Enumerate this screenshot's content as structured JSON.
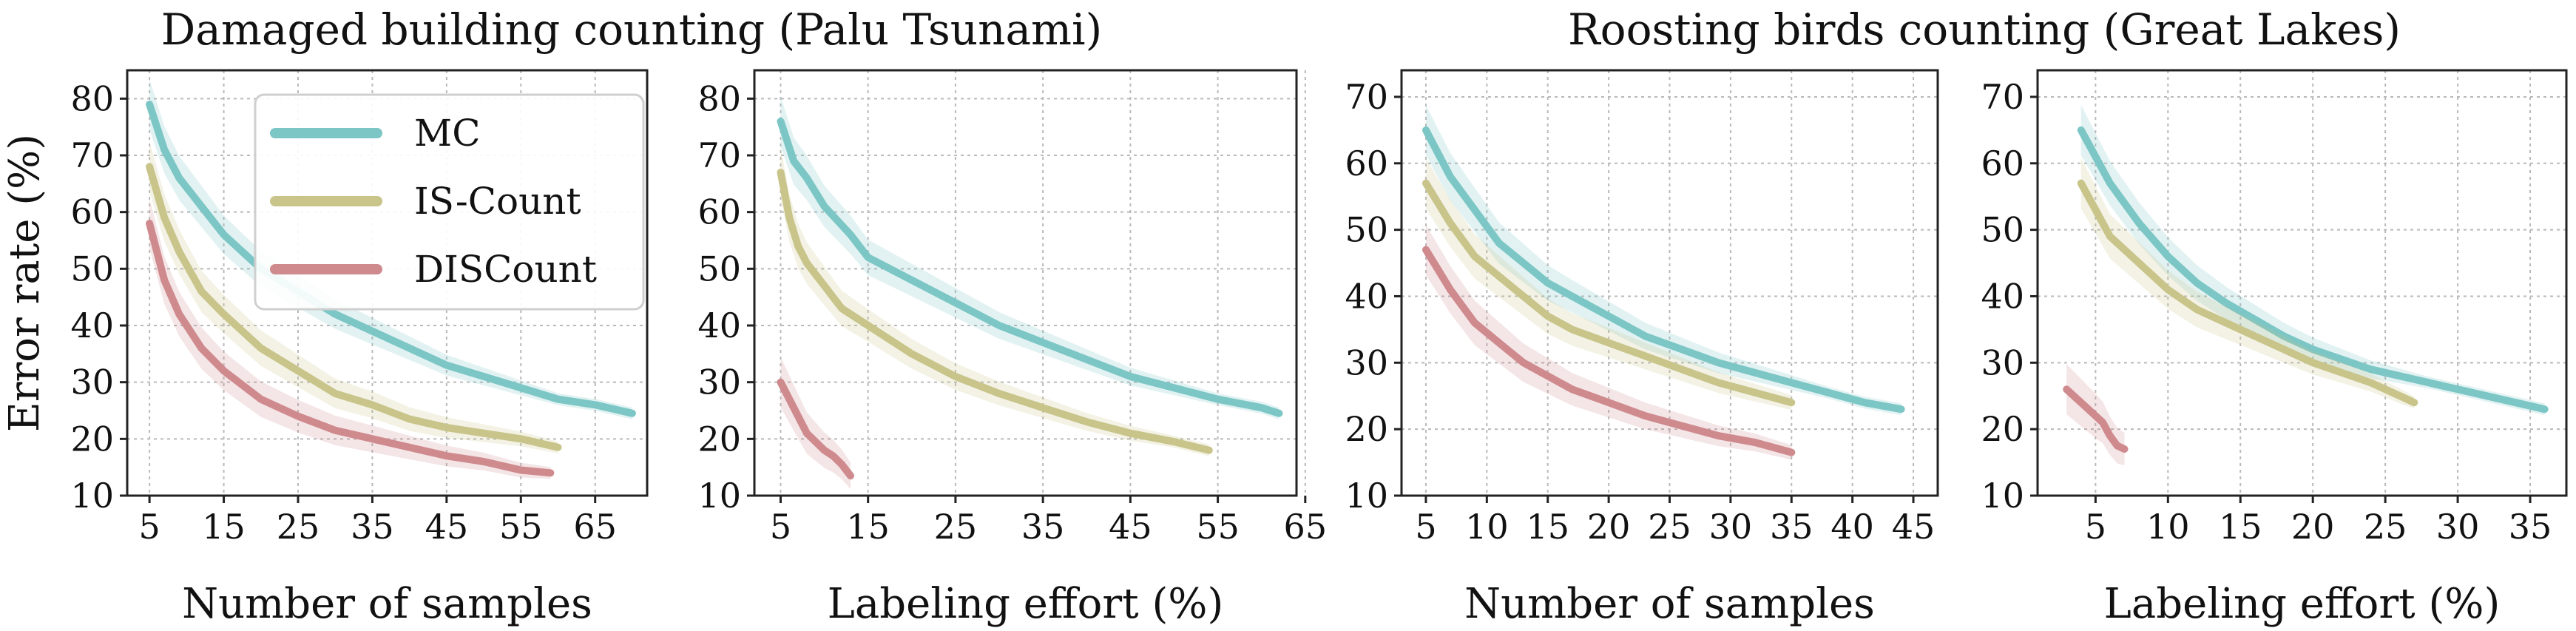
{
  "suptitles": [
    "Damaged building counting (Palu Tsunami)",
    "Roosting birds counting (Great Lakes)"
  ],
  "colors": {
    "MC": "#7cc6c6",
    "IS-Count": "#c8c48a",
    "DISCount": "#cf8a8e",
    "grid": "#b9b9b9"
  },
  "legend": {
    "placement": "upper-left of first panel",
    "entries": [
      "MC",
      "IS-Count",
      "DISCount"
    ]
  },
  "chart_data": [
    {
      "type": "line",
      "group": "Damaged building counting (Palu Tsunami)",
      "xlabel": "Number of samples",
      "ylabel": "Error rate (%)",
      "xlim": [
        2,
        72
      ],
      "ylim": [
        10,
        85
      ],
      "xticks": [
        5,
        15,
        25,
        35,
        45,
        55,
        65
      ],
      "yticks": [
        10,
        20,
        30,
        40,
        50,
        60,
        70,
        80
      ],
      "grid": true,
      "series": [
        {
          "name": "MC",
          "x": [
            5,
            7,
            9,
            12,
            15,
            20,
            25,
            30,
            35,
            40,
            45,
            50,
            55,
            60,
            65,
            70
          ],
          "y": [
            79,
            71,
            66,
            61,
            56,
            50,
            46,
            42,
            39,
            36,
            33,
            31,
            29,
            27,
            26,
            24.5
          ]
        },
        {
          "name": "IS-Count",
          "x": [
            5,
            7,
            9,
            12,
            15,
            20,
            25,
            30,
            35,
            40,
            45,
            50,
            55,
            60
          ],
          "y": [
            68,
            59,
            53,
            46,
            42,
            36,
            32,
            28,
            26,
            23.5,
            22,
            21,
            20,
            18.5
          ]
        },
        {
          "name": "DISCount",
          "x": [
            5,
            7,
            9,
            12,
            15,
            20,
            25,
            30,
            35,
            40,
            45,
            50,
            55,
            59
          ],
          "y": [
            58,
            48,
            42,
            36,
            32,
            27,
            24,
            21.5,
            20,
            18.5,
            17,
            16,
            14.5,
            14
          ]
        }
      ]
    },
    {
      "type": "line",
      "group": "Damaged building counting (Palu Tsunami)",
      "xlabel": "Labeling effort (%)",
      "ylabel": "",
      "xlim": [
        2,
        64
      ],
      "ylim": [
        10,
        85
      ],
      "xticks": [
        5,
        15,
        25,
        35,
        45,
        55,
        65
      ],
      "yticks": [
        10,
        20,
        30,
        40,
        50,
        60,
        70,
        80
      ],
      "grid": true,
      "series": [
        {
          "name": "MC",
          "x": [
            5,
            6.5,
            8,
            10,
            13,
            15,
            20,
            25,
            30,
            35,
            40,
            45,
            50,
            55,
            60,
            62
          ],
          "y": [
            76,
            69,
            66,
            61,
            56,
            52,
            48,
            44,
            40,
            37,
            34,
            31,
            29,
            27,
            25.5,
            24.5
          ]
        },
        {
          "name": "IS-Count",
          "x": [
            5,
            6,
            7,
            8,
            10,
            12,
            15,
            20,
            25,
            30,
            35,
            40,
            45,
            50,
            54
          ],
          "y": [
            67,
            59,
            54,
            51,
            47,
            43,
            40,
            35,
            31,
            28,
            25.5,
            23,
            21,
            19.5,
            18
          ]
        },
        {
          "name": "DISCount",
          "x": [
            5,
            6,
            7,
            8,
            9,
            10,
            11,
            12,
            13
          ],
          "y": [
            30,
            27,
            24,
            21,
            19.5,
            18,
            17,
            15.5,
            13.5
          ]
        }
      ]
    },
    {
      "type": "line",
      "group": "Roosting birds counting (Great Lakes)",
      "xlabel": "Number of samples",
      "ylabel": "",
      "xlim": [
        3,
        47
      ],
      "ylim": [
        10,
        74
      ],
      "xticks": [
        5,
        10,
        15,
        20,
        25,
        30,
        35,
        40,
        45
      ],
      "yticks": [
        10,
        20,
        30,
        40,
        50,
        60,
        70
      ],
      "grid": true,
      "series": [
        {
          "name": "MC",
          "x": [
            5,
            7,
            9,
            11,
            13,
            15,
            17,
            20,
            23,
            26,
            29,
            32,
            35,
            38,
            41,
            44
          ],
          "y": [
            65,
            58,
            53,
            48,
            45,
            42,
            40,
            37,
            34,
            32,
            30,
            28.5,
            27,
            25.5,
            24,
            23
          ]
        },
        {
          "name": "IS-Count",
          "x": [
            5,
            7,
            9,
            11,
            13,
            15,
            17,
            20,
            23,
            26,
            29,
            32,
            35
          ],
          "y": [
            57,
            51,
            46,
            43,
            40,
            37,
            35,
            33,
            31,
            29,
            27,
            25.5,
            24
          ]
        },
        {
          "name": "DISCount",
          "x": [
            5,
            7,
            9,
            11,
            13,
            15,
            17,
            20,
            23,
            26,
            29,
            32,
            35
          ],
          "y": [
            47,
            41,
            36,
            33,
            30,
            28,
            26,
            24,
            22,
            20.5,
            19,
            18,
            16.5
          ]
        }
      ]
    },
    {
      "type": "line",
      "group": "Roosting birds counting (Great Lakes)",
      "xlabel": "Labeling effort (%)",
      "ylabel": "",
      "xlim": [
        1,
        37.5
      ],
      "ylim": [
        10,
        74
      ],
      "xticks": [
        5,
        10,
        15,
        20,
        25,
        30,
        35
      ],
      "yticks": [
        10,
        20,
        30,
        40,
        50,
        60,
        70
      ],
      "grid": true,
      "series": [
        {
          "name": "MC",
          "x": [
            4,
            5,
            6,
            8,
            10,
            12,
            14,
            16,
            18,
            20,
            22,
            24,
            26,
            28,
            30,
            32,
            34,
            36
          ],
          "y": [
            65,
            61,
            57,
            51,
            46,
            42,
            39,
            36.5,
            34,
            32,
            30.5,
            29,
            28,
            27,
            26,
            25,
            24,
            23
          ]
        },
        {
          "name": "IS-Count",
          "x": [
            4,
            5,
            6,
            8,
            10,
            12,
            14,
            16,
            18,
            20,
            22,
            24,
            26,
            27
          ],
          "y": [
            57,
            53,
            49,
            45,
            41,
            38,
            36,
            34,
            32,
            30,
            28.5,
            27,
            25,
            24
          ]
        },
        {
          "name": "DISCount",
          "x": [
            3,
            4,
            5,
            5.5,
            6,
            6.5,
            7
          ],
          "y": [
            26,
            24,
            22,
            21,
            19,
            17.5,
            17
          ]
        }
      ]
    }
  ]
}
